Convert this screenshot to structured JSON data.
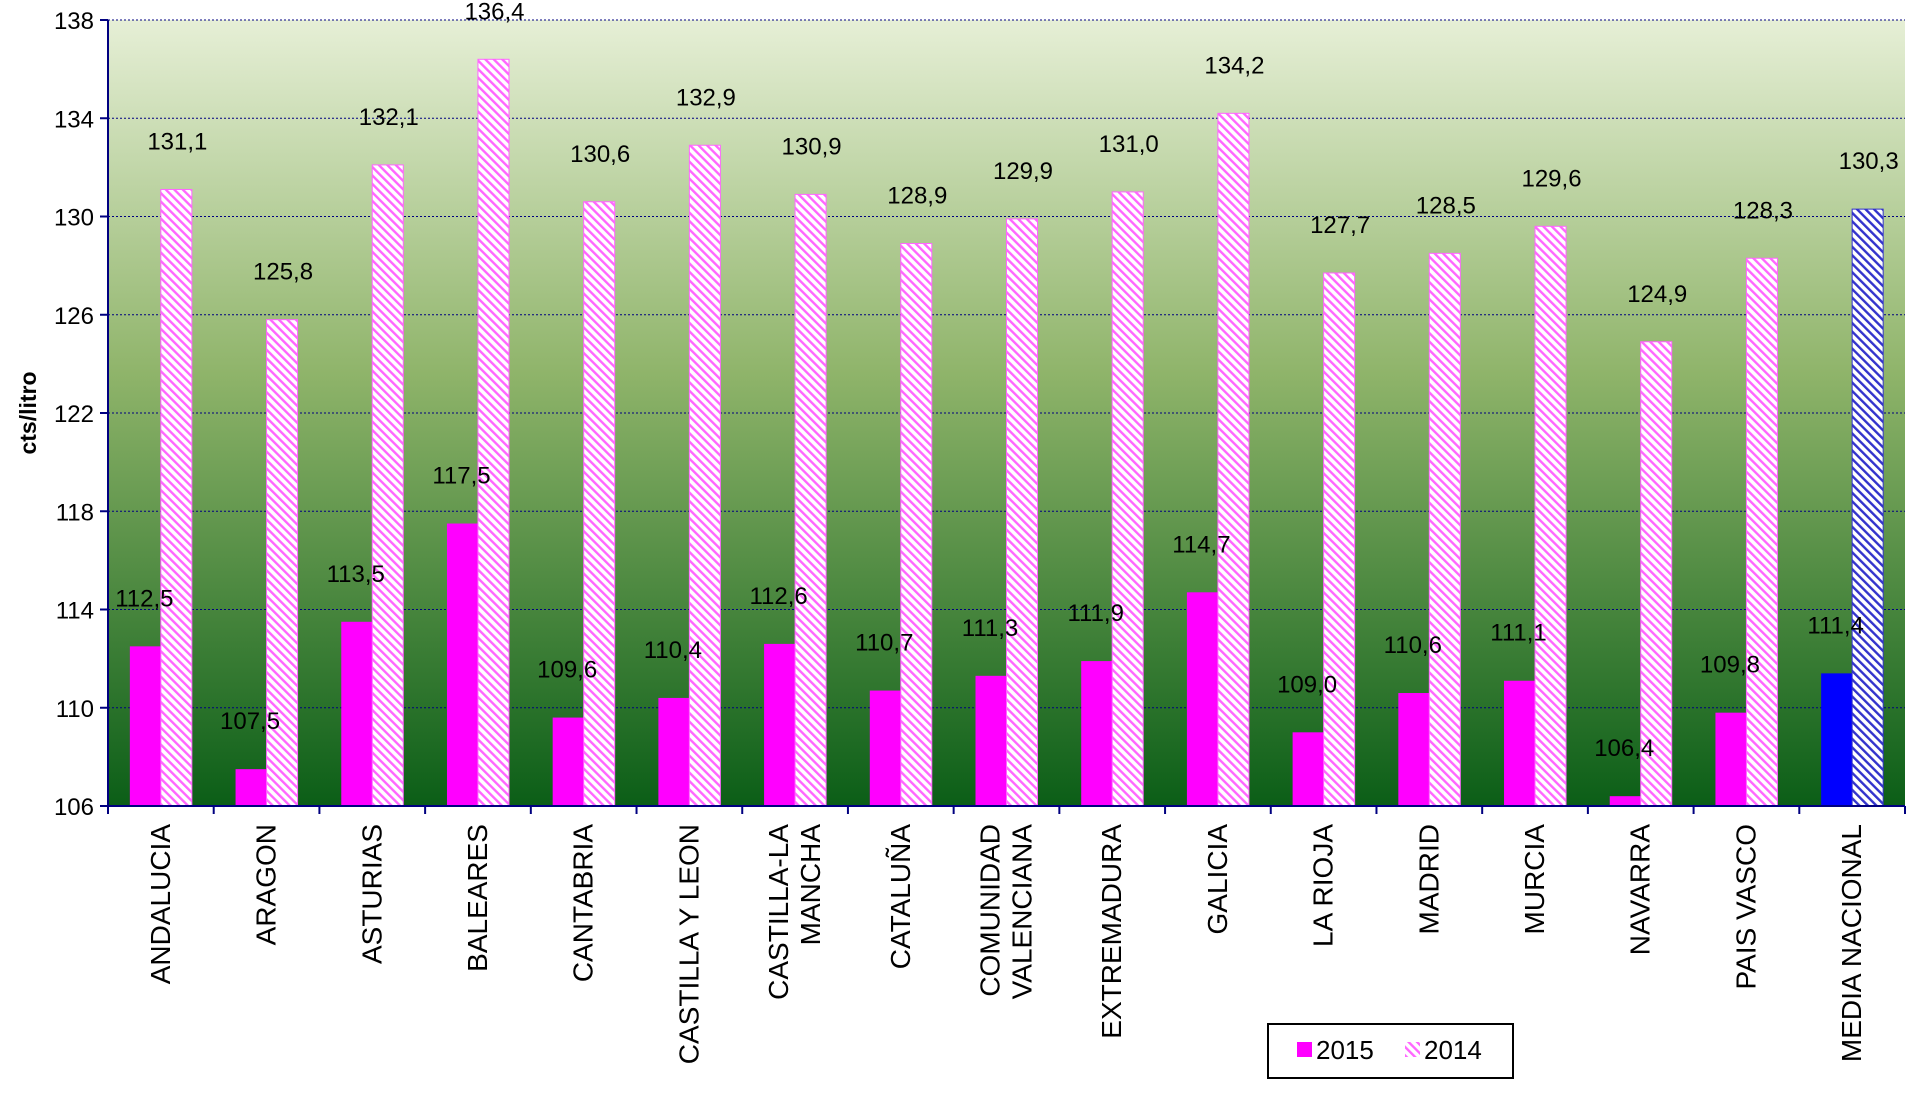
{
  "chart_data": {
    "type": "bar",
    "title": "",
    "xlabel": "",
    "ylabel": "cts/litro",
    "ylim": [
      106,
      138
    ],
    "yticks": [
      106,
      110,
      114,
      118,
      122,
      126,
      130,
      134,
      138
    ],
    "grid": "horizontal dotted",
    "legend_position": "bottom-right",
    "categories": [
      "ANDALUCIA",
      "ARAGON",
      "ASTURIAS",
      "BALEARES",
      "CANTABRIA",
      "CASTILLA Y LEON",
      "CASTILLA-LA MANCHA",
      "CATALUÑA",
      "COMUNIDAD VALENCIANA",
      "EXTREMADURA",
      "GALICIA",
      "LA RIOJA",
      "MADRID",
      "MURCIA",
      "NAVARRA",
      "PAIS VASCO",
      "MEDIA NACIONAL"
    ],
    "category_label_lines": [
      [
        "ANDALUCIA"
      ],
      [
        "ARAGON"
      ],
      [
        "ASTURIAS"
      ],
      [
        "BALEARES"
      ],
      [
        "CANTABRIA"
      ],
      [
        "CASTILLA Y LEON"
      ],
      [
        "CASTILLA-LA",
        "MANCHA"
      ],
      [
        "CATALUÑA"
      ],
      [
        "COMUNIDAD",
        "VALENCIANA"
      ],
      [
        "EXTREMADURA"
      ],
      [
        "GALICIA"
      ],
      [
        "LA RIOJA"
      ],
      [
        "MADRID"
      ],
      [
        "MURCIA"
      ],
      [
        "NAVARRA"
      ],
      [
        "PAIS VASCO"
      ],
      [
        "MEDIA NACIONAL"
      ]
    ],
    "series": [
      {
        "name": "2015",
        "values": [
          112.5,
          107.5,
          113.5,
          117.5,
          109.6,
          110.4,
          112.6,
          110.7,
          111.3,
          111.9,
          114.7,
          109.0,
          110.6,
          111.1,
          106.4,
          109.8,
          111.4
        ],
        "labels": [
          "112,5",
          "107,5",
          "113,5",
          "117,5",
          "109,6",
          "110,4",
          "112,6",
          "110,7",
          "111,3",
          "111,9",
          "114,7",
          "109,0",
          "110,6",
          "111,1",
          "106,4",
          "109,8",
          "111,4"
        ]
      },
      {
        "name": "2014",
        "values": [
          131.1,
          125.8,
          132.1,
          136.4,
          130.6,
          132.9,
          130.9,
          128.9,
          129.9,
          131.0,
          134.2,
          127.7,
          128.5,
          129.6,
          124.9,
          128.3,
          130.3
        ],
        "labels": [
          "131,1",
          "125,8",
          "132,1",
          "136,4",
          "130,6",
          "132,9",
          "130,9",
          "128,9",
          "129,9",
          "131,0",
          "134,2",
          "127,7",
          "128,5",
          "129,6",
          "124,9",
          "128,3",
          "130,3"
        ]
      }
    ],
    "colors": {
      "series_2015": "#ff00ff",
      "series_2014_stripe": "#ff66ff",
      "media_2015": "#0000ff",
      "media_2014_stripe": "#3333cc",
      "background_top": "#e6efd6",
      "background_bottom": "#0b5e17",
      "axis": "#000080",
      "grid": "#000080"
    }
  }
}
